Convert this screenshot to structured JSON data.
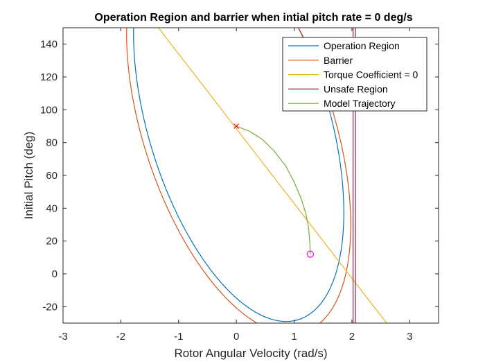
{
  "chart_data": {
    "type": "line",
    "title": "Operation Region and barrier when intial pitch rate = 0 deg/s",
    "xlabel": "Rotor Angular Velocity (rad/s)",
    "ylabel": "Initial Pitch (deg)",
    "xlim": [
      -3,
      3.5
    ],
    "ylim": [
      -30,
      150
    ],
    "xticks": [
      -3,
      -2,
      -1,
      0,
      1,
      2,
      3
    ],
    "yticks": [
      -20,
      0,
      20,
      40,
      60,
      80,
      100,
      120,
      140
    ],
    "grid": false,
    "legend_position": "top-right",
    "series": [
      {
        "name": "Operation Region",
        "color": "#0072BD",
        "kind": "ellipse",
        "center": [
          0.04,
          92
        ],
        "semi_axes": [
          1.82,
          108
        ],
        "tilt_slope": -30,
        "x_range": [
          -1.86,
          1.9
        ]
      },
      {
        "name": "Barrier",
        "color": "#D95319",
        "kind": "ellipse",
        "center": [
          0.04,
          88
        ],
        "semi_axes": [
          1.94,
          110
        ],
        "tilt_slope": -30,
        "x_range": [
          -1.98,
          2.02
        ]
      },
      {
        "name": "Torque Coefficient = 0",
        "color": "#EDB120",
        "kind": "line",
        "points": [
          [
            -1.35,
            150
          ],
          [
            2.6,
            -30
          ]
        ]
      },
      {
        "name": "Unsafe Region",
        "color": "#A2142F",
        "kind": "polyline",
        "points": [
          [
            2.02,
            150
          ],
          [
            2.02,
            -30
          ],
          [
            2.06,
            -30
          ],
          [
            2.06,
            150
          ]
        ]
      },
      {
        "name": "Model Trajectory",
        "color": "#77AC30",
        "kind": "polyline",
        "points": [
          [
            0.0,
            90
          ],
          [
            0.22,
            87
          ],
          [
            0.45,
            82
          ],
          [
            0.65,
            75
          ],
          [
            0.85,
            66
          ],
          [
            1.0,
            56
          ],
          [
            1.12,
            46
          ],
          [
            1.2,
            37
          ],
          [
            1.25,
            28
          ],
          [
            1.27,
            20
          ],
          [
            1.28,
            12
          ]
        ]
      }
    ],
    "markers": [
      {
        "shape": "x",
        "color": "#FF0000",
        "x": 0.0,
        "y": 90
      },
      {
        "shape": "circle",
        "color": "#FF00FF",
        "x": 1.28,
        "y": 12
      }
    ]
  }
}
